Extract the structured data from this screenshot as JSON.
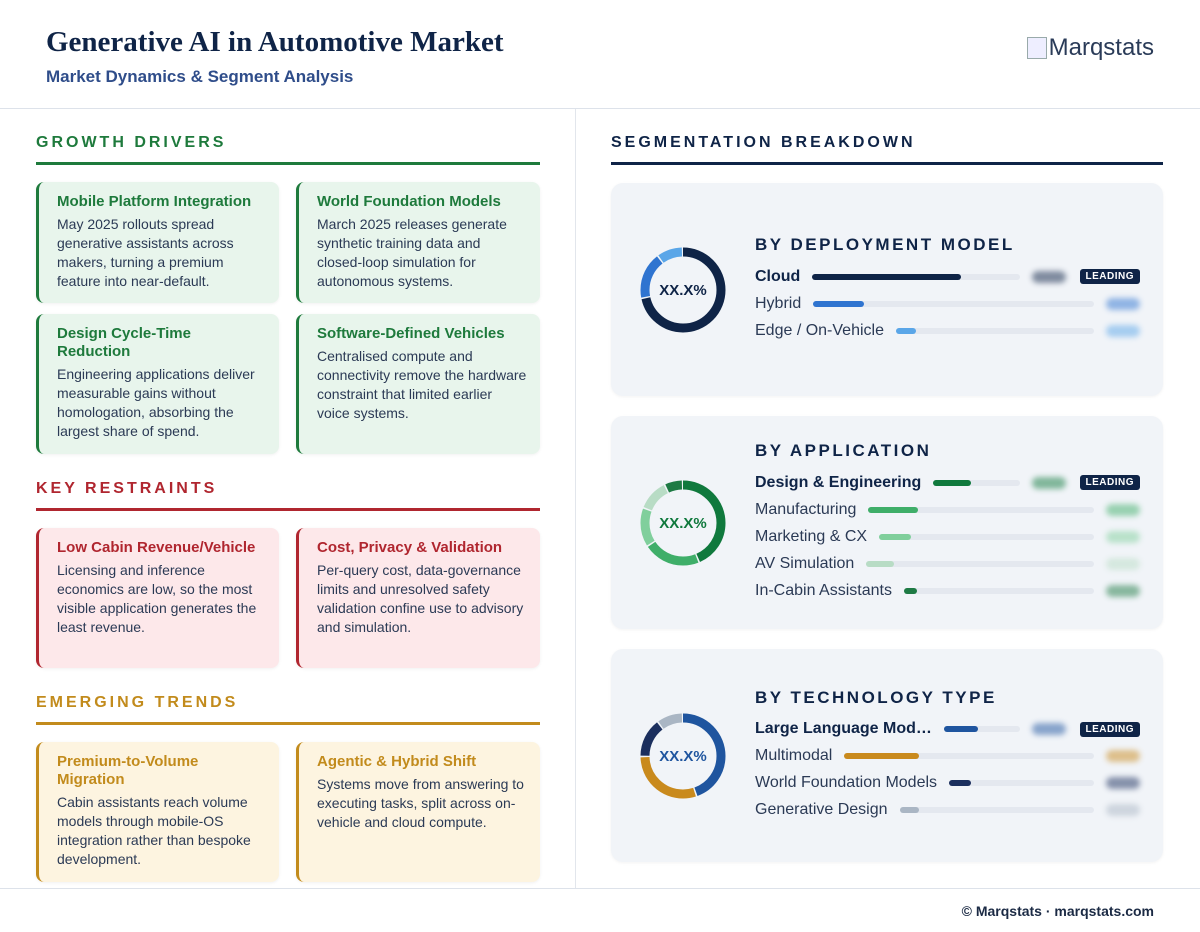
{
  "header": {
    "title": "Generative AI in Automotive Market",
    "subtitle": "Market Dynamics & Segment Analysis",
    "logo": "Marqstats"
  },
  "sections": [
    {
      "heading": "GROWTH DRIVERS",
      "color": "#1e7a3c",
      "bg": "#e8f5ec",
      "cards": [
        {
          "title": "Mobile Platform Integration",
          "text": "May 2025 rollouts spread generative assistants across makers, turning a premium feature into near-default."
        },
        {
          "title": "World Foundation Models",
          "text": "March 2025 releases generate synthetic training data and closed-loop simulation for autonomous systems."
        },
        {
          "title": "Design Cycle-Time Reduction",
          "text": "Engineering applications deliver measurable gains without homologation, absorbing the largest share of spend."
        },
        {
          "title": "Software-Defined Vehicles",
          "text": "Centralised compute and connectivity remove the hardware constraint that limited earlier voice systems."
        }
      ]
    },
    {
      "heading": "KEY RESTRAINTS",
      "color": "#b0262f",
      "bg": "#fde8ea",
      "cards": [
        {
          "title": "Low Cabin Revenue/Vehicle",
          "text": "Licensing and inference economics are low, so the most visible application generates the least revenue."
        },
        {
          "title": "Cost, Privacy & Validation",
          "text": "Per-query cost, data-governance limits and unresolved safety validation confine use to advisory and simulation."
        }
      ]
    },
    {
      "heading": "EMERGING TRENDS",
      "color": "#c28b1c",
      "bg": "#fdf4e0",
      "cards": [
        {
          "title": "Premium-to-Volume Migration",
          "text": "Cabin assistants reach volume models through mobile-OS integration rather than bespoke development."
        },
        {
          "title": "Agentic & Hybrid Shift",
          "text": "Systems move from answering to executing tasks, split across on-vehicle and cloud compute."
        }
      ]
    }
  ],
  "segmentation": {
    "heading": "SEGMENTATION BREAKDOWN",
    "panels": [
      {
        "title": "BY DEPLOYMENT MODEL",
        "center_label": "XX.X%",
        "items": [
          {
            "name": "Cloud",
            "value": 72,
            "color": "#0f2447",
            "badge": "LEADING"
          },
          {
            "name": "Hybrid",
            "value": 18,
            "color": "#2f74d0"
          },
          {
            "name": "Edge / On-Vehicle",
            "value": 10,
            "color": "#5aa6e8"
          }
        ]
      },
      {
        "title": "BY APPLICATION",
        "center_label": "XX.X%",
        "items": [
          {
            "name": "Design & Engineering",
            "value": 44,
            "color": "#10793d",
            "badge": "LEADING"
          },
          {
            "name": "Manufacturing",
            "value": 22,
            "color": "#3fae69"
          },
          {
            "name": "Marketing & CX",
            "value": 15,
            "color": "#80cf9c"
          },
          {
            "name": "AV Simulation",
            "value": 12,
            "color": "#b8dcc5"
          },
          {
            "name": "In-Cabin Assistants",
            "value": 7,
            "color": "#1e7a44"
          }
        ]
      },
      {
        "title": "BY TECHNOLOGY TYPE",
        "center_label": "XX.X%",
        "items": [
          {
            "name": "Large Language Mod…",
            "value": 45,
            "color": "#1f559f",
            "badge": "LEADING"
          },
          {
            "name": "Multimodal",
            "value": 30,
            "color": "#c98a1d"
          },
          {
            "name": "World Foundation Models",
            "value": 15,
            "color": "#1b2f5e"
          },
          {
            "name": "Generative Design",
            "value": 10,
            "color": "#aab6c4"
          }
        ]
      }
    ]
  },
  "footer": "© Marqstats · marqstats.com"
}
